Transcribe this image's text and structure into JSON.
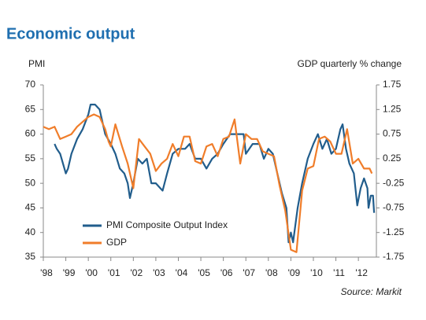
{
  "chart_data": {
    "type": "line",
    "title": "Economic output",
    "y_label": "PMI",
    "y2_label": "GDP quarterly % change",
    "source": "Source: Markit",
    "xlim": [
      1998,
      2012.8
    ],
    "xticks": [
      {
        "value": 1998,
        "label": "'98"
      },
      {
        "value": 1999,
        "label": "'99"
      },
      {
        "value": 2000,
        "label": "'00"
      },
      {
        "value": 2001,
        "label": "'01"
      },
      {
        "value": 2002,
        "label": "'02"
      },
      {
        "value": 2003,
        "label": "'03"
      },
      {
        "value": 2004,
        "label": "'04"
      },
      {
        "value": 2005,
        "label": "'05"
      },
      {
        "value": 2006,
        "label": "'06"
      },
      {
        "value": 2007,
        "label": "'07"
      },
      {
        "value": 2008,
        "label": "'08"
      },
      {
        "value": 2009,
        "label": "'09"
      },
      {
        "value": 2010,
        "label": "'10"
      },
      {
        "value": 2011,
        "label": "'11"
      },
      {
        "value": 2012,
        "label": "'12"
      }
    ],
    "ylim": [
      35,
      70
    ],
    "yticks": [
      35,
      40,
      45,
      50,
      55,
      60,
      65,
      70
    ],
    "y2lim": [
      -1.75,
      1.75
    ],
    "y2ticks": [
      -1.75,
      -1.25,
      -0.75,
      -0.25,
      0.25,
      0.75,
      1.25,
      1.75
    ],
    "legend": "lower left",
    "series": [
      {
        "name": "PMI Composite Output Index",
        "color": "#215d8c",
        "x": [
          1998.5,
          1998.6,
          1998.75,
          1999.0,
          1999.1,
          1999.25,
          1999.5,
          1999.75,
          2000.0,
          2000.1,
          2000.3,
          2000.5,
          2000.75,
          2001.0,
          2001.2,
          2001.4,
          2001.6,
          2001.75,
          2001.85,
          2002.0,
          2002.2,
          2002.4,
          2002.6,
          2002.8,
          2003.0,
          2003.2,
          2003.3,
          2003.5,
          2003.75,
          2004.0,
          2004.3,
          2004.5,
          2004.75,
          2005.0,
          2005.25,
          2005.5,
          2005.75,
          2006.0,
          2006.3,
          2006.6,
          2006.9,
          2007.0,
          2007.3,
          2007.6,
          2007.8,
          2008.0,
          2008.2,
          2008.4,
          2008.6,
          2008.8,
          2008.9,
          2009.0,
          2009.1,
          2009.3,
          2009.5,
          2009.75,
          2010.0,
          2010.2,
          2010.4,
          2010.6,
          2010.8,
          2011.0,
          2011.2,
          2011.3,
          2011.45,
          2011.6,
          2011.8,
          2011.95,
          2012.1,
          2012.25,
          2012.4,
          2012.45,
          2012.55,
          2012.65,
          2012.7
        ],
        "values": [
          58,
          57,
          56,
          52,
          53,
          56,
          59,
          61,
          64,
          66,
          66,
          65,
          60,
          58,
          56,
          53,
          52,
          50,
          47,
          50,
          55,
          54,
          55,
          50,
          50,
          49,
          48.5,
          52,
          56,
          57,
          57,
          58,
          55,
          55,
          53,
          55,
          56,
          58,
          60,
          60,
          60,
          56,
          58,
          58,
          55,
          57,
          56,
          52,
          48,
          45,
          38,
          40,
          38,
          45,
          50,
          55,
          58,
          60,
          57,
          59,
          56,
          57,
          61,
          62,
          57,
          54,
          52,
          45.5,
          49,
          51,
          49,
          45,
          47.5,
          47.5,
          44
        ]
      },
      {
        "name": "GDP",
        "color": "#f07d2a",
        "axis": "y2",
        "x": [
          1998.0,
          1998.25,
          1998.5,
          1998.75,
          1999.0,
          1999.25,
          1999.5,
          1999.75,
          2000.0,
          2000.25,
          2000.5,
          2000.75,
          2000.9,
          2001.0,
          2001.2,
          2001.5,
          2001.75,
          2002.0,
          2002.25,
          2002.5,
          2002.75,
          2003.0,
          2003.25,
          2003.5,
          2003.75,
          2004.0,
          2004.25,
          2004.5,
          2004.75,
          2005.0,
          2005.25,
          2005.5,
          2005.75,
          2006.0,
          2006.25,
          2006.5,
          2006.75,
          2007.0,
          2007.25,
          2007.5,
          2007.75,
          2008.0,
          2008.25,
          2008.5,
          2008.75,
          2009.0,
          2009.25,
          2009.5,
          2009.75,
          2010.0,
          2010.25,
          2010.5,
          2010.75,
          2011.0,
          2011.25,
          2011.5,
          2011.75,
          2012.0,
          2012.25,
          2012.5,
          2012.6
        ],
        "values": [
          0.9,
          0.85,
          0.9,
          0.65,
          0.7,
          0.75,
          0.9,
          1.0,
          1.1,
          1.15,
          1.1,
          0.85,
          0.6,
          0.5,
          0.95,
          0.5,
          0.15,
          -0.35,
          0.65,
          0.5,
          0.35,
          0.0,
          0.15,
          0.25,
          0.55,
          0.3,
          0.7,
          0.7,
          0.2,
          0.15,
          0.5,
          0.55,
          0.3,
          0.65,
          0.7,
          1.05,
          0.15,
          0.75,
          0.65,
          0.65,
          0.4,
          0.35,
          0.3,
          -0.3,
          -0.8,
          -1.6,
          -1.65,
          -0.4,
          0.05,
          0.1,
          0.65,
          0.7,
          0.6,
          0.35,
          0.35,
          0.85,
          0.15,
          0.25,
          0.05,
          0.05,
          -0.05
        ]
      }
    ]
  }
}
